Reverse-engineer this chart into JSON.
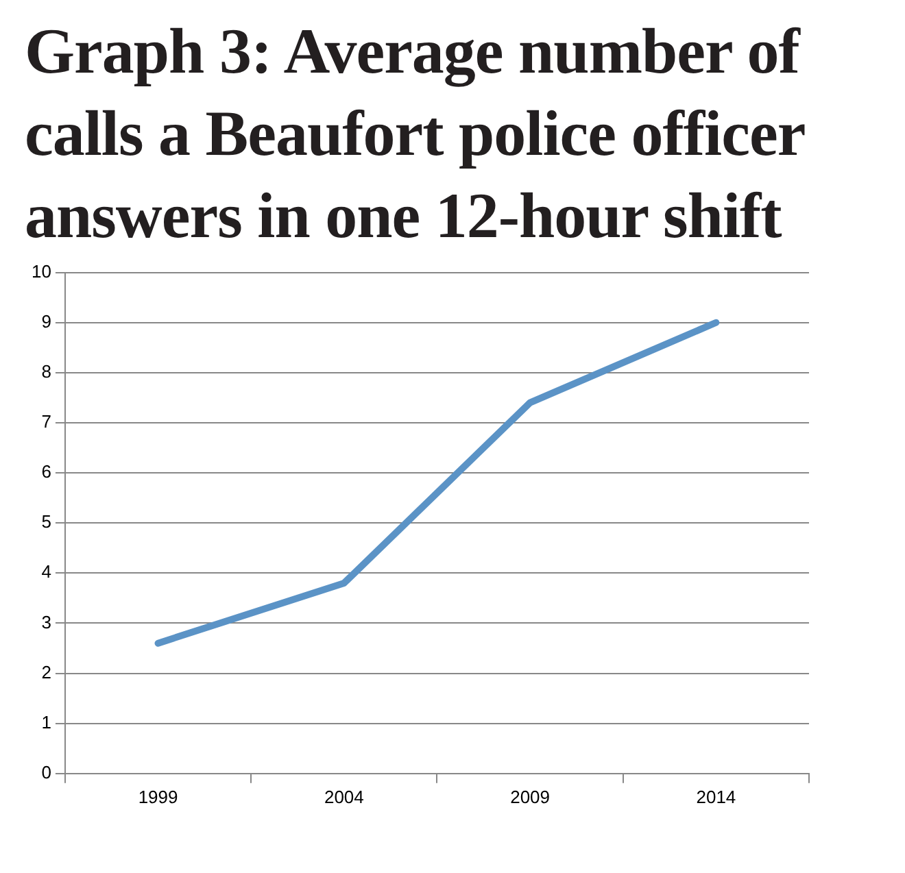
{
  "chart_data": {
    "type": "line",
    "title": "Graph 3: Average number of calls a Beaufort police officer answers in one 12-hour shift",
    "categories": [
      "1999",
      "2004",
      "2009",
      "2014"
    ],
    "series": [
      {
        "color": "#5b93c6",
        "values": [
          2.6,
          3.8,
          7.4,
          9.0
        ]
      }
    ],
    "ylim": [
      0,
      10
    ],
    "yticks": [
      0,
      1,
      2,
      3,
      4,
      5,
      6,
      7,
      8,
      9,
      10
    ],
    "grid": "y",
    "legend": false,
    "marker": "none"
  }
}
